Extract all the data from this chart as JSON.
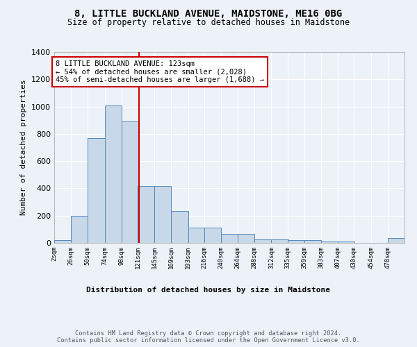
{
  "title1": "8, LITTLE BUCKLAND AVENUE, MAIDSTONE, ME16 0BG",
  "title2": "Size of property relative to detached houses in Maidstone",
  "xlabel": "Distribution of detached houses by size in Maidstone",
  "ylabel": "Number of detached properties",
  "bin_labels": [
    "2sqm",
    "26sqm",
    "50sqm",
    "74sqm",
    "98sqm",
    "121sqm",
    "145sqm",
    "169sqm",
    "193sqm",
    "216sqm",
    "240sqm",
    "264sqm",
    "288sqm",
    "312sqm",
    "335sqm",
    "359sqm",
    "383sqm",
    "407sqm",
    "430sqm",
    "454sqm",
    "478sqm"
  ],
  "bin_edges": [
    2,
    26,
    50,
    74,
    98,
    121,
    145,
    169,
    193,
    216,
    240,
    264,
    288,
    312,
    335,
    359,
    383,
    407,
    430,
    454,
    478
  ],
  "bar_heights": [
    20,
    200,
    770,
    1010,
    890,
    420,
    420,
    235,
    110,
    110,
    65,
    65,
    25,
    25,
    20,
    20,
    10,
    10,
    0,
    0,
    35
  ],
  "bar_color": "#c8d8e8",
  "bar_edge_color": "#5588bb",
  "property_value": 123,
  "vline_color": "#cc0000",
  "annotation_text": "8 LITTLE BUCKLAND AVENUE: 123sqm\n← 54% of detached houses are smaller (2,028)\n45% of semi-detached houses are larger (1,688) →",
  "annotation_box_color": "#ffffff",
  "annotation_box_edge": "#cc0000",
  "ylim": [
    0,
    1400
  ],
  "yticks": [
    0,
    200,
    400,
    600,
    800,
    1000,
    1200,
    1400
  ],
  "bg_color": "#edf2f8",
  "plot_bg_color": "#edf2f8",
  "grid_color": "#ffffff",
  "footer1": "Contains HM Land Registry data © Crown copyright and database right 2024.",
  "footer2": "Contains public sector information licensed under the Open Government Licence v3.0."
}
